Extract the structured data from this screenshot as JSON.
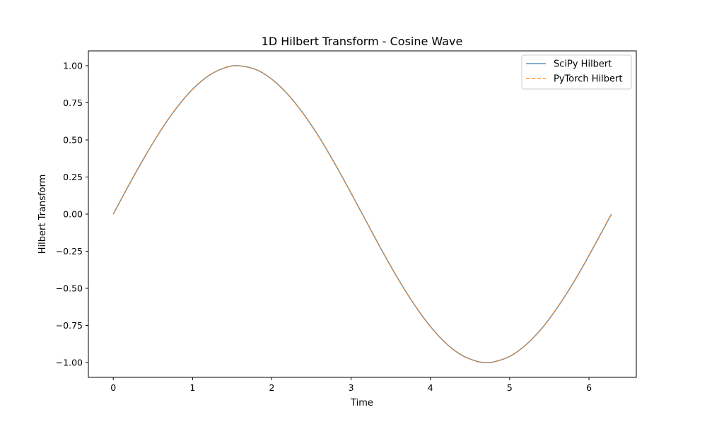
{
  "chart_data": {
    "type": "line",
    "title": "1D Hilbert Transform - Cosine Wave",
    "xlabel": "Time",
    "ylabel": "Hilbert Transform",
    "xlim": [
      -0.314,
      6.597
    ],
    "ylim": [
      -1.1,
      1.1
    ],
    "xticks": [
      0,
      1,
      2,
      3,
      4,
      5,
      6
    ],
    "xtick_labels": [
      "0",
      "1",
      "2",
      "3",
      "4",
      "5",
      "6"
    ],
    "yticks": [
      1.0,
      0.75,
      0.5,
      0.25,
      0.0,
      -0.25,
      -0.5,
      -0.75,
      -1.0
    ],
    "ytick_labels": [
      "1.00",
      "0.75",
      "0.50",
      "0.25",
      "0.00",
      "−0.25",
      "−0.50",
      "−0.75",
      "−1.00"
    ],
    "grid": false,
    "legend_position": "upper right",
    "x": [
      0.0,
      0.2,
      0.4,
      0.6,
      0.8,
      1.0,
      1.2,
      1.4,
      1.571,
      1.8,
      2.0,
      2.2,
      2.4,
      2.6,
      2.8,
      3.0,
      3.2,
      3.4,
      3.6,
      3.8,
      4.0,
      4.2,
      4.4,
      4.6,
      4.712,
      4.8,
      5.0,
      5.2,
      5.4,
      5.6,
      5.8,
      6.0,
      6.283
    ],
    "series": [
      {
        "name": "SciPy Hilbert",
        "color": "#1f77b4",
        "style": "solid",
        "values": [
          0.0,
          0.199,
          0.389,
          0.565,
          0.717,
          0.841,
          0.932,
          0.985,
          1.0,
          0.974,
          0.909,
          0.808,
          0.675,
          0.516,
          0.335,
          0.141,
          -0.058,
          -0.256,
          -0.443,
          -0.612,
          -0.757,
          -0.872,
          -0.952,
          -0.994,
          -1.0,
          -0.996,
          -0.959,
          -0.883,
          -0.773,
          -0.631,
          -0.465,
          -0.279,
          0.0
        ]
      },
      {
        "name": "PyTorch Hilbert",
        "color": "#ff7f0e",
        "style": "dashed",
        "values": [
          0.0,
          0.199,
          0.389,
          0.565,
          0.717,
          0.841,
          0.932,
          0.985,
          1.0,
          0.974,
          0.909,
          0.808,
          0.675,
          0.516,
          0.335,
          0.141,
          -0.058,
          -0.256,
          -0.443,
          -0.612,
          -0.757,
          -0.872,
          -0.952,
          -0.994,
          -1.0,
          -0.996,
          -0.959,
          -0.883,
          -0.773,
          -0.631,
          -0.465,
          -0.279,
          0.0
        ]
      }
    ]
  }
}
